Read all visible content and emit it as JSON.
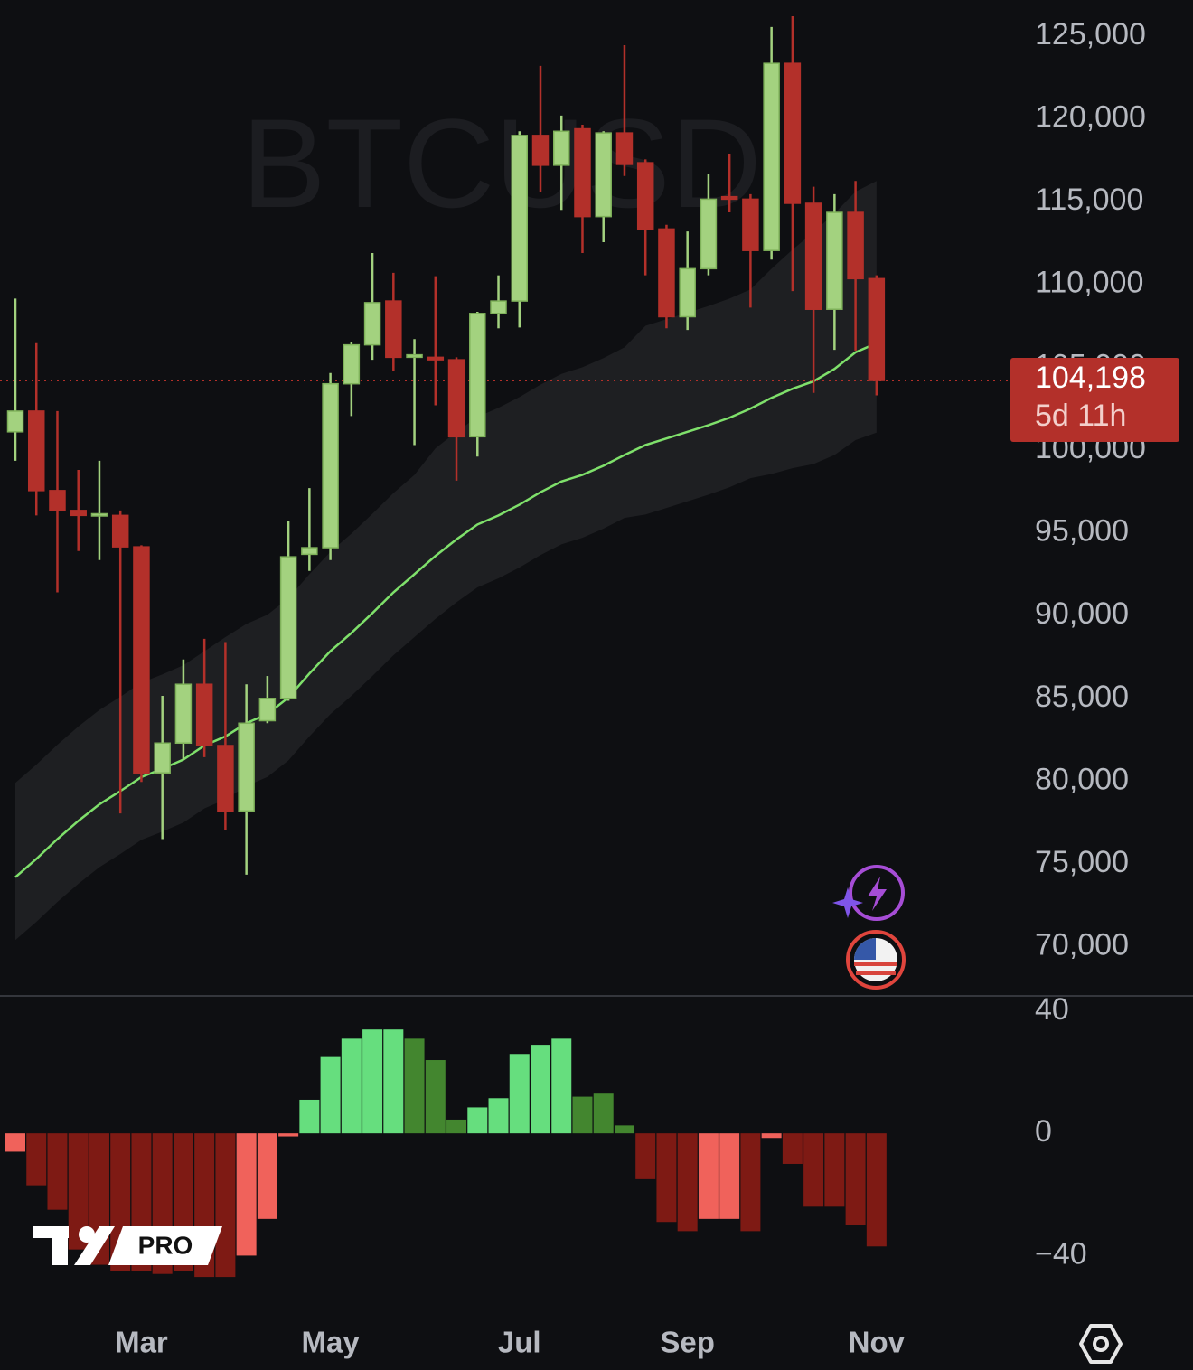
{
  "branding": {
    "label": "PRO"
  },
  "chart_data": [
    {
      "type": "candlestick",
      "watermark": "BTCUSD",
      "categories": [
        null,
        null,
        null,
        null,
        null,
        null,
        "Mar",
        null,
        null,
        null,
        null,
        null,
        null,
        null,
        null,
        "May",
        null,
        null,
        null,
        null,
        null,
        null,
        null,
        null,
        "Jul",
        null,
        null,
        null,
        null,
        null,
        null,
        null,
        "Sep",
        null,
        null,
        null,
        null,
        null,
        null,
        null,
        null,
        "Nov"
      ],
      "open": [
        101100,
        102350,
        97550,
        96350,
        96050,
        96050,
        94150,
        80500,
        82300,
        85850,
        82150,
        78200,
        83650,
        85000,
        93700,
        94100,
        104000,
        106350,
        109000,
        105600,
        105600,
        105450,
        100800,
        108250,
        109000,
        119000,
        117200,
        119400,
        114100,
        119150,
        117350,
        113350,
        108050,
        110950,
        115300,
        115150,
        112050,
        123350,
        114900,
        108500,
        114350,
        110350
      ],
      "high": [
        109150,
        106450,
        102350,
        98800,
        99350,
        96350,
        94250,
        85150,
        87350,
        88600,
        88400,
        85850,
        86350,
        95700,
        97700,
        104650,
        106550,
        111900,
        110700,
        106700,
        110500,
        105600,
        108350,
        110550,
        119250,
        123200,
        120200,
        119650,
        119250,
        124450,
        117550,
        113600,
        113200,
        116650,
        117900,
        115450,
        125550,
        126200,
        115900,
        115450,
        116250,
        110550
      ],
      "low": [
        99350,
        96050,
        91400,
        93900,
        93350,
        78050,
        79950,
        76500,
        81300,
        81450,
        77050,
        74350,
        83500,
        84850,
        92700,
        93350,
        102050,
        105450,
        104800,
        100300,
        102700,
        98150,
        99600,
        107350,
        107400,
        115600,
        114500,
        111900,
        112550,
        116550,
        110550,
        107350,
        107250,
        110550,
        114350,
        108600,
        111500,
        109600,
        103450,
        106050,
        106000,
        103300
      ],
      "close": [
        102350,
        97550,
        96350,
        96050,
        96150,
        94150,
        80500,
        82300,
        85850,
        82150,
        78200,
        83500,
        85000,
        93550,
        94100,
        104000,
        106350,
        108900,
        105600,
        105750,
        105450,
        100800,
        108250,
        109000,
        119000,
        117200,
        119250,
        114100,
        119150,
        117250,
        113350,
        108050,
        110950,
        115150,
        115150,
        112050,
        123350,
        114900,
        108500,
        114350,
        110350,
        104198
      ],
      "up_color": "#a3d27f",
      "down_color": "#b3302a",
      "ylim": [
        67140,
        127180
      ],
      "yticks": [
        {
          "value": 70000,
          "label": "70,000"
        },
        {
          "value": 75000,
          "label": "75,000"
        },
        {
          "value": 80000,
          "label": "80,000"
        },
        {
          "value": 85000,
          "label": "85,000"
        },
        {
          "value": 90000,
          "label": "90,000"
        },
        {
          "value": 95000,
          "label": "95,000"
        },
        {
          "value": 100000,
          "label": "100,000"
        },
        {
          "value": 105000,
          "label": "105,000"
        },
        {
          "value": 110000,
          "label": "110,000"
        },
        {
          "value": 115000,
          "label": "115,000"
        },
        {
          "value": 120000,
          "label": "120,000"
        },
        {
          "value": 125000,
          "label": "125,000"
        }
      ],
      "ema": {
        "color": "#7fe06b",
        "values": [
          74200,
          75300,
          76500,
          77600,
          78600,
          79400,
          80250,
          80750,
          81300,
          82150,
          82700,
          83500,
          84050,
          85050,
          86500,
          87850,
          88950,
          90150,
          91400,
          92500,
          93600,
          94600,
          95500,
          96050,
          96700,
          97450,
          98100,
          98500,
          99050,
          99700,
          100300,
          100700,
          101100,
          101500,
          101950,
          102500,
          103150,
          103700,
          104150,
          104900,
          105900,
          106450
        ]
      },
      "band": {
        "color": "#1e1f22",
        "upper": [
          79900,
          81000,
          82200,
          83300,
          84300,
          85100,
          85950,
          86450,
          87000,
          87850,
          88700,
          89500,
          90050,
          91050,
          92500,
          93850,
          94950,
          96150,
          97400,
          98500,
          100100,
          101100,
          102000,
          102550,
          103200,
          103950,
          104600,
          105000,
          105550,
          106200,
          107500,
          107900,
          108300,
          108700,
          109150,
          109700,
          110950,
          112100,
          113150,
          114300,
          115600,
          116250
        ],
        "lower": [
          70400,
          71500,
          72700,
          73800,
          74800,
          75600,
          76450,
          76950,
          77500,
          78350,
          78900,
          79700,
          80250,
          81250,
          82700,
          84050,
          85150,
          86350,
          87600,
          88700,
          89800,
          90800,
          91700,
          92250,
          92900,
          93650,
          94300,
          94700,
          95250,
          95900,
          96100,
          96500,
          96900,
          97300,
          97750,
          98300,
          98550,
          98900,
          99150,
          99700,
          100600,
          101050
        ]
      },
      "last_price": {
        "value": 104198,
        "label": "104,198",
        "countdown": "5d 11h",
        "color": "#b3302a"
      }
    },
    {
      "type": "bar",
      "values": [
        -6,
        -17,
        -25,
        -38,
        -43,
        -45,
        -45,
        -46,
        -45,
        -47,
        -47,
        -40,
        -28,
        -1,
        11,
        25,
        31,
        34,
        34,
        31,
        24,
        4.5,
        8.5,
        11.5,
        26,
        29,
        31,
        12,
        13,
        2.6,
        -15,
        -29,
        -32,
        -28,
        -28,
        -32,
        -1.5,
        -10,
        -24,
        -24,
        -30,
        -37
      ],
      "colors": [
        "#f0625b",
        "#7e1a14",
        "#7e1a14",
        "#7e1a14",
        "#7e1a14",
        "#7e1a14",
        "#7e1a14",
        "#7e1a14",
        "#7e1a14",
        "#7e1a14",
        "#7e1a14",
        "#f0625b",
        "#f0625b",
        "#f0625b",
        "#66de7e",
        "#66de7e",
        "#66de7e",
        "#66de7e",
        "#66de7e",
        "#43862f",
        "#43862f",
        "#43862f",
        "#66de7e",
        "#66de7e",
        "#66de7e",
        "#66de7e",
        "#66de7e",
        "#43862f",
        "#43862f",
        "#43862f",
        "#7e1a14",
        "#7e1a14",
        "#7e1a14",
        "#f0625b",
        "#f0625b",
        "#7e1a14",
        "#f0625b",
        "#7e1a14",
        "#7e1a14",
        "#7e1a14",
        "#7e1a14",
        "#7e1a14"
      ],
      "ylim": [
        -52,
        45
      ],
      "yticks": [
        40,
        0,
        {
          "value": -40,
          "label": "−40"
        }
      ]
    }
  ]
}
